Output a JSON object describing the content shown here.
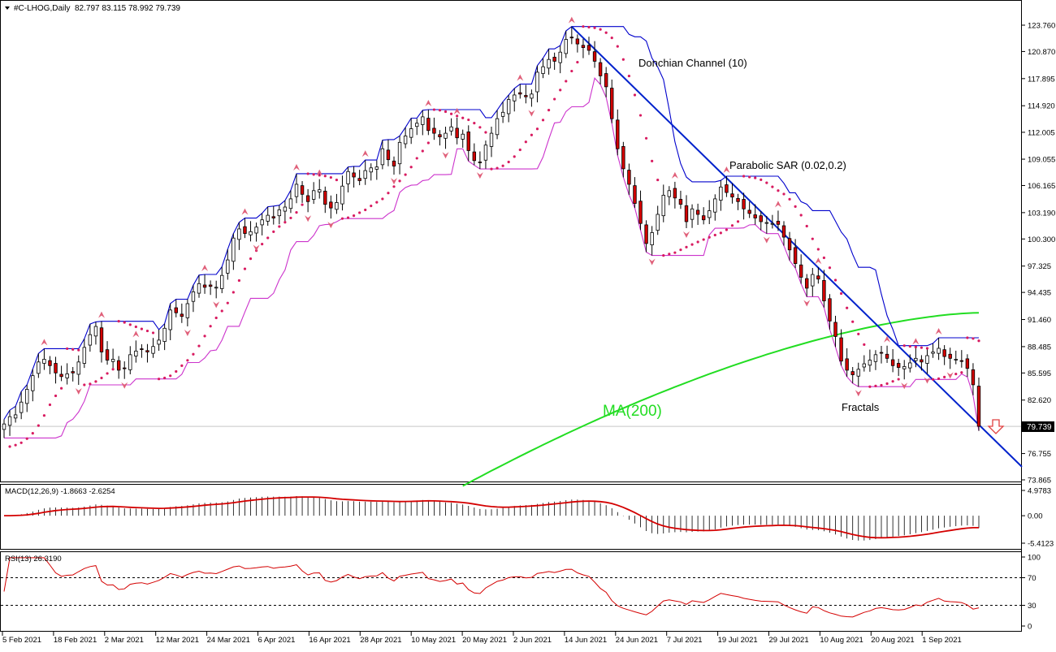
{
  "header": {
    "symbol_label": "#C-LHOG,Daily",
    "ohlc_label": "82.797 83.115 78.992 79.739"
  },
  "colors": {
    "bull_body": "#ffffff",
    "bear_body": "#d40000",
    "candle_outline": "#000000",
    "donchian": "#0000cc",
    "trendline": "#0022cc",
    "ma200": "#22dd22",
    "sar": "#d81b60",
    "lower_band": "#cc33cc",
    "fractal": "#e0607a",
    "macd_line": "#d40000",
    "rsi_line": "#d40000",
    "signal_arrow": "#e04040"
  },
  "chart_data": [
    {
      "type": "candlestick",
      "title": "#C-LHOG,Daily",
      "price_axis_ticks": [
        "123.760",
        "120.870",
        "117.895",
        "114.920",
        "112.005",
        "109.055",
        "106.165",
        "103.190",
        "100.300",
        "97.325",
        "94.435",
        "91.460",
        "88.485",
        "85.595",
        "82.620",
        "79.739",
        "76.755",
        "73.865"
      ],
      "ylim": [
        73.865,
        123.76
      ],
      "last_price": 79.739,
      "last_price_label": "79.739",
      "date_axis_ticks": [
        "5 Feb 2021",
        "18 Feb 2021",
        "2 Mar 2021",
        "12 Mar 2021",
        "24 Mar 2021",
        "6 Apr 2021",
        "16 Apr 2021",
        "28 Apr 2021",
        "10 May 2021",
        "20 May 2021",
        "2 Jun 2021",
        "14 Jun 2021",
        "24 Jun 2021",
        "7 Jul 2021",
        "19 Jul 2021",
        "29 Jul 2021",
        "10 Aug 2021",
        "20 Aug 2021",
        "1 Sep 2021"
      ],
      "close_series": [
        80.0,
        80.8,
        81.0,
        82.4,
        83.8,
        85.3,
        86.8,
        87.1,
        86.4,
        85.6,
        85.2,
        85.5,
        85.6,
        86.8,
        88.4,
        89.8,
        90.7,
        87.9,
        87.0,
        87.1,
        85.9,
        86.1,
        87.6,
        88.0,
        88.2,
        87.9,
        88.5,
        89.2,
        90.5,
        92.5,
        92.2,
        91.8,
        93.2,
        94.5,
        95.4,
        95.0,
        95.1,
        95.0,
        96.3,
        98.0,
        100.4,
        101.4,
        100.9,
        101.1,
        101.6,
        102.4,
        102.9,
        102.6,
        103.5,
        103.8,
        104.7,
        106.3,
        105.2,
        104.4,
        105.6,
        105.7,
        104.1,
        103.7,
        104.3,
        106.1,
        107.7,
        107.1,
        106.7,
        107.8,
        108.1,
        108.2,
        110.2,
        109.0,
        108.3,
        110.9,
        111.6,
        112.4,
        113.0,
        113.7,
        112.2,
        111.9,
        111.5,
        111.9,
        112.6,
        111.4,
        111.8,
        110.0,
        108.9,
        108.7,
        110.6,
        111.9,
        113.5,
        114.2,
        115.6,
        116.1,
        116.2,
        115.9,
        116.2,
        118.6,
        119.2,
        120.0,
        119.8,
        120.8,
        122.2,
        122.4,
        121.7,
        121.3,
        121.0,
        119.8,
        118.2,
        117.0,
        113.5,
        110.2,
        108.0,
        106.3,
        104.2,
        102.0,
        99.8,
        101.0,
        103.0,
        105.1,
        105.6,
        104.8,
        104.1,
        102.2,
        103.6,
        103.0,
        102.4,
        103.4,
        104.7,
        106.0,
        105.4,
        104.9,
        104.4,
        103.6,
        103.1,
        102.6,
        102.2,
        102.1,
        102.0,
        101.9,
        100.5,
        99.1,
        97.6,
        96.1,
        94.9,
        96.4,
        95.9,
        93.5,
        91.3,
        89.6,
        86.9,
        85.9,
        85.4,
        86.0,
        86.6,
        87.0,
        87.6,
        87.8,
        87.2,
        86.4,
        86.2,
        86.3,
        86.7,
        87.2,
        86.8,
        87.5,
        87.9,
        88.3,
        87.4,
        87.2,
        87.1,
        86.9,
        86.1,
        84.3,
        79.739
      ]
    },
    {
      "type": "line",
      "title": "MACD(12,26,9) -1.8663 -2.6254",
      "ylim": [
        -5.4123,
        4.9783
      ],
      "axis_ticks": [
        "4.9783",
        "0.00",
        "-5.4123"
      ],
      "macd_value": -1.8663,
      "signal_value": -2.6254
    },
    {
      "type": "line",
      "title": "RSI(13) 26.3190",
      "ylim": [
        0,
        100
      ],
      "axis_ticks": [
        "100",
        "70",
        "30",
        "0"
      ],
      "levels": [
        70,
        30
      ],
      "last_value": 26.319
    }
  ],
  "annotations": {
    "donchian_label": "Donchian Channel (10)",
    "sar_label": "Parabolic SAR (0.02,0.2)",
    "ma_label": "MA(200)",
    "fractals_label": "Fractals"
  }
}
